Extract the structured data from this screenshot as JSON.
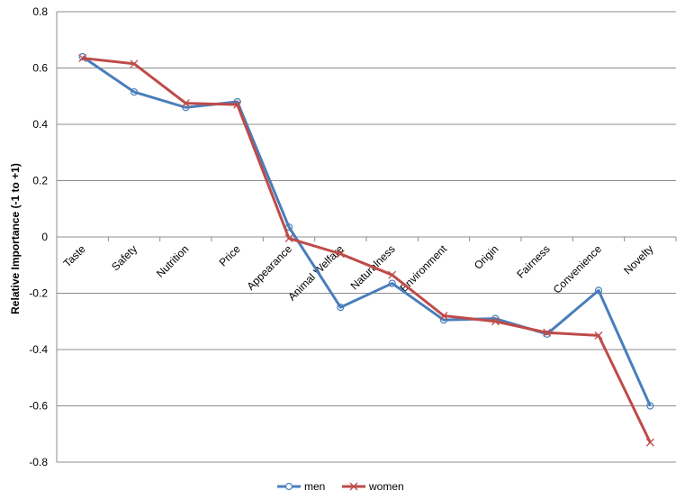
{
  "chart_data": {
    "type": "line",
    "categories": [
      "Taste",
      "Safety",
      "Nutrition",
      "Price",
      "Appearance",
      "Animal Welfare",
      "Naturalness",
      "Environment",
      "Origin",
      "Fairness",
      "Convenience",
      "Novelty"
    ],
    "series": [
      {
        "name": "men",
        "color": "#4a7ebb",
        "marker": "circle",
        "values": [
          0.64,
          0.515,
          0.46,
          0.48,
          0.035,
          -0.25,
          -0.165,
          -0.295,
          -0.29,
          -0.345,
          -0.19,
          -0.6
        ]
      },
      {
        "name": "women",
        "color": "#be4b48",
        "marker": "x",
        "values": [
          0.635,
          0.615,
          0.475,
          0.47,
          -0.005,
          -0.06,
          -0.135,
          -0.28,
          -0.3,
          -0.34,
          -0.35,
          -0.73
        ]
      }
    ],
    "title": "",
    "xlabel": "",
    "ylabel": "Relative Importance (-1 to +1)",
    "ylim": [
      -0.8,
      0.8
    ],
    "yticks": [
      "0.8",
      "0.6",
      "0.4",
      "0.2",
      "0",
      "-0.2",
      "-0.4",
      "-0.6",
      "-0.8"
    ],
    "grid": true,
    "legend_position": "bottom"
  }
}
